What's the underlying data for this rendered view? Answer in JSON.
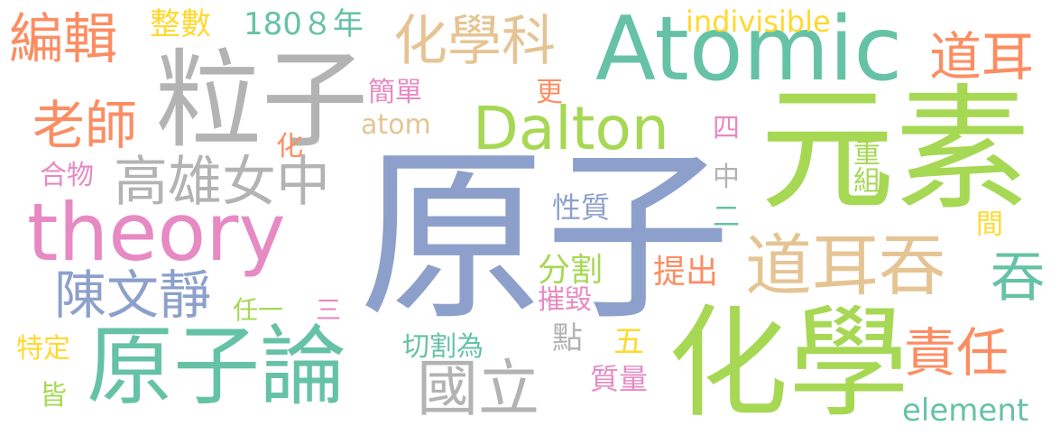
{
  "palette": {
    "blue": "#8da0cb",
    "green": "#a6d854",
    "teal": "#66c2a5",
    "gray": "#b3b3b3",
    "pink": "#e78ac3",
    "orange": "#fc8d62",
    "tan": "#e5c494",
    "yellow": "#ffd92f"
  },
  "words": {
    "w_yuanzi": "原子",
    "w_yuansu": "元素",
    "w_huaxue": "化學",
    "w_lizi": "粒子",
    "w_atomic": "Atomic",
    "w_theory": "theory",
    "w_yuanzilun": "原子論",
    "w_daoertun": "道耳吞",
    "w_dalton": "Dalton",
    "w_gaoxiong": "高雄女中",
    "w_huaxueke": "化學科",
    "w_guoli": "國立",
    "w_chenwenjing": "陳文靜",
    "w_bianji": "編輯",
    "w_laoshi": "老師",
    "w_daoer": "道耳",
    "w_zeren": "責任",
    "w_tun": "吞",
    "w_indivisible": "indivisible",
    "w_element": "element",
    "w_atom": "atom",
    "w_zhengshu": "整數",
    "w_1808": "180８年",
    "w_jiandan": "簡單",
    "w_xingzhi": "性質",
    "w_fenge": "分割",
    "w_cuihui": "摧毀",
    "w_tichu": "提出",
    "w_qiegewei": "切割為",
    "w_zhiliang": "質量",
    "w_dian": "點",
    "w_wu": "五",
    "w_renyi": "任一",
    "w_san": "三",
    "w_tedding": "特定",
    "w_jie": "皆",
    "w_hua": "化",
    "w_hewu": "合物",
    "w_geng": "更",
    "w_si": "四",
    "w_zhongzu": "重組",
    "w_zhong": "中",
    "w_er": "二",
    "w_jian": "間"
  }
}
